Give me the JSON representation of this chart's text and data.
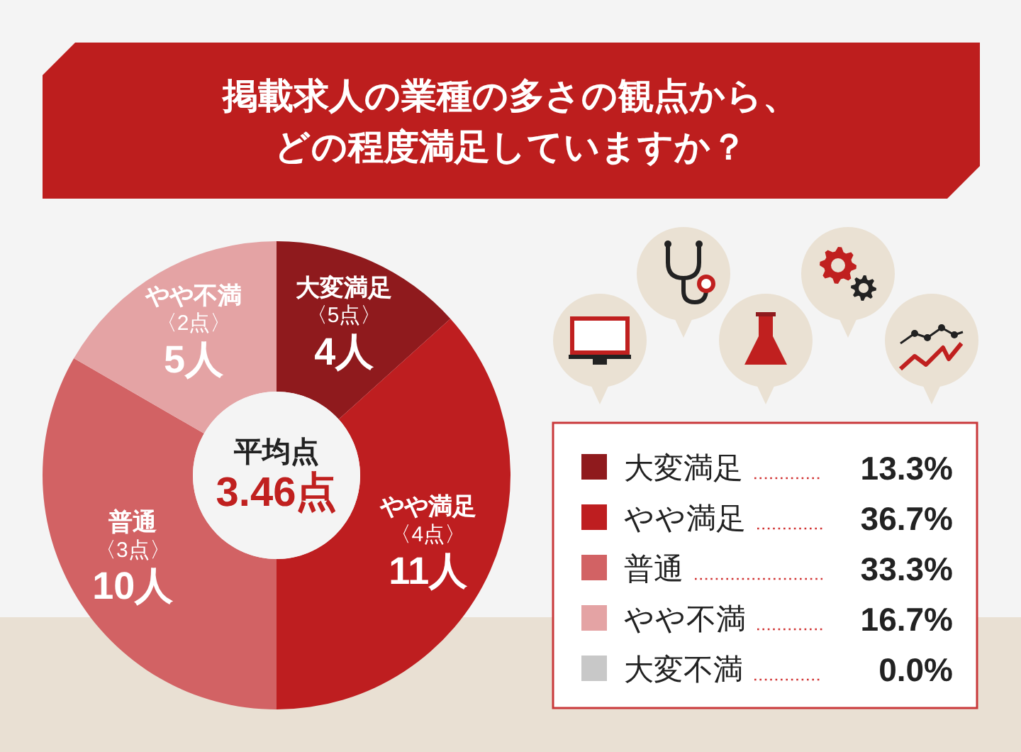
{
  "chart_data": {
    "type": "donut",
    "title": "掲載求人の業種の多さの観点から、どの程度満足していますか？",
    "categories": [
      "大変満足",
      "やや満足",
      "普通",
      "やや不満",
      "大変不満"
    ],
    "values": [
      4,
      11,
      10,
      5,
      0
    ],
    "colors": [
      "#8f1a1d",
      "#be1e20",
      "#d26264",
      "#e4a3a4",
      "#c8c8c8"
    ],
    "value_labels": [
      "4人",
      "11人",
      "10人",
      "5人",
      null
    ],
    "legend": "right",
    "annotations": [
      "平均点",
      "3.46点",
      {
        "text": "〈5点〉",
        "x": "大変満足"
      },
      {
        "text": "〈4点〉",
        "x": "やや満足"
      },
      {
        "text": "〈3点〉",
        "x": "普通"
      },
      {
        "text": "〈2点〉",
        "x": "やや不満"
      },
      {
        "text": "13.3%",
        "x": "大変満足"
      },
      {
        "text": "36.7%",
        "x": "やや満足"
      },
      {
        "text": "33.3%",
        "x": "普通"
      },
      {
        "text": "16.7%",
        "x": "やや不満"
      },
      {
        "text": "0.0%",
        "x": "大変不満"
      }
    ]
  }
}
